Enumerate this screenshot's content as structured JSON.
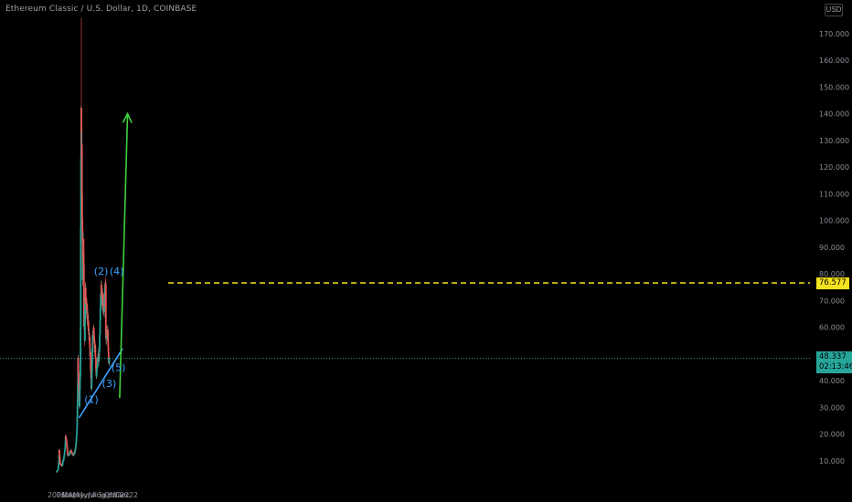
{
  "header": {
    "symbol_title": "Ethereum Classic / U.S. Dollar, 1D, COINBASE",
    "currency": "USD"
  },
  "price_badges": {
    "level": "76.577",
    "last_price": "48.337",
    "countdown": "02:13:46"
  },
  "colors": {
    "background": "#000000",
    "up": "#26a69a",
    "down": "#ef5350",
    "support_line": "#3ea1ff",
    "resistance_line": "#f3e21e",
    "projection_arrow": "#3ed13e",
    "wave_label": "#3ea1ff",
    "last_price_line": "#26a69a"
  },
  "chart_data": {
    "type": "candlestick",
    "title": "Ethereum Classic / U.S. Dollar, 1D, COINBASE",
    "x_axis": {
      "tick_labels": [
        "2021",
        "Feb",
        "Mar",
        "Apr",
        "May",
        "Jun",
        "Jul",
        "Aug",
        "Sep",
        "Oct",
        "Nov",
        "Dec",
        "2022"
      ]
    },
    "y_axis": {
      "side": "right",
      "ylim": [
        0,
        180
      ],
      "tick_labels": [
        "10.000",
        "20.000",
        "30.000",
        "40.000",
        "50.000",
        "60.000",
        "70.000",
        "80.000",
        "90.000",
        "100.000",
        "110.000",
        "120.000",
        "130.000",
        "140.000",
        "150.000",
        "160.000",
        "170.000"
      ],
      "tick_values": [
        10,
        20,
        30,
        40,
        50,
        60,
        70,
        80,
        90,
        100,
        110,
        120,
        130,
        140,
        150,
        160,
        170
      ]
    },
    "price_path": [
      [
        "2021-01-01",
        6
      ],
      [
        "2021-01-08",
        6.5
      ],
      [
        "2021-01-12",
        10
      ],
      [
        "2021-01-14",
        14
      ],
      [
        "2021-01-18",
        9
      ],
      [
        "2021-01-28",
        8
      ],
      [
        "2021-02-06",
        11
      ],
      [
        "2021-02-12",
        14
      ],
      [
        "2021-02-15",
        19
      ],
      [
        "2021-02-20",
        17
      ],
      [
        "2021-02-26",
        12
      ],
      [
        "2021-03-06",
        12.5
      ],
      [
        "2021-03-15",
        14
      ],
      [
        "2021-03-25",
        12
      ],
      [
        "2021-04-03",
        13
      ],
      [
        "2021-04-10",
        17
      ],
      [
        "2021-04-14",
        22
      ],
      [
        "2021-04-16",
        30
      ],
      [
        "2021-04-18",
        38
      ],
      [
        "2021-04-19",
        47
      ],
      [
        "2021-04-23",
        37
      ],
      [
        "2021-04-26",
        30
      ],
      [
        "2021-05-01",
        45
      ],
      [
        "2021-05-02",
        60
      ],
      [
        "2021-05-03",
        95
      ],
      [
        "2021-05-04",
        120
      ],
      [
        "2021-05-05",
        140
      ],
      [
        "2021-05-06",
        130
      ],
      [
        "2021-05-08",
        125
      ],
      [
        "2021-05-10",
        100
      ],
      [
        "2021-05-12",
        95
      ],
      [
        "2021-05-13",
        78
      ],
      [
        "2021-05-15",
        85
      ],
      [
        "2021-05-16",
        90
      ],
      [
        "2021-05-18",
        82
      ],
      [
        "2021-05-19",
        60
      ],
      [
        "2021-05-20",
        68
      ],
      [
        "2021-05-23",
        57
      ],
      [
        "2021-05-26",
        76
      ],
      [
        "2021-05-29",
        70
      ],
      [
        "2021-06-01",
        68
      ],
      [
        "2021-06-08",
        62
      ],
      [
        "2021-06-15",
        56
      ],
      [
        "2021-06-21",
        48
      ],
      [
        "2021-06-23",
        43
      ],
      [
        "2021-06-26",
        38
      ],
      [
        "2021-06-29",
        45
      ],
      [
        "2021-07-02",
        55
      ],
      [
        "2021-07-07",
        58
      ],
      [
        "2021-07-11",
        54
      ],
      [
        "2021-07-16",
        50
      ],
      [
        "2021-07-21",
        42
      ],
      [
        "2021-07-24",
        45
      ],
      [
        "2021-07-28",
        48
      ],
      [
        "2021-08-03",
        49
      ],
      [
        "2021-08-07",
        56
      ],
      [
        "2021-08-10",
        65
      ],
      [
        "2021-08-14",
        74
      ],
      [
        "2021-08-17",
        72
      ],
      [
        "2021-08-23",
        70
      ],
      [
        "2021-08-28",
        64
      ],
      [
        "2021-09-03",
        74
      ],
      [
        "2021-09-06",
        75
      ],
      [
        "2021-09-07",
        58
      ],
      [
        "2021-09-11",
        57
      ],
      [
        "2021-09-17",
        58
      ],
      [
        "2021-09-20",
        52
      ],
      [
        "2021-09-22",
        46
      ],
      [
        "2021-09-24",
        48.337
      ]
    ],
    "key_highs": [
      [
        "2021-05-06",
        176
      ],
      [
        "2021-08-14",
        77
      ],
      [
        "2021-09-06",
        77
      ]
    ],
    "annotations": {
      "wave_labels": [
        "(1)",
        "(2)",
        "(3)",
        "(4)",
        "(5)"
      ],
      "wave_points": [
        [
          "2021-06-26",
          33
        ],
        [
          "2021-08-14",
          81
        ],
        [
          "2021-09-24",
          39
        ],
        [
          "2021-11-01",
          81
        ],
        [
          "2021-11-10",
          45
        ]
      ],
      "support_trendline": [
        [
          "2021-04-24",
          26
        ],
        [
          "2021-12-01",
          52
        ]
      ],
      "resistance_level": 76.577,
      "projection_arrow": [
        [
          "2021-11-16",
          33.5
        ],
        [
          "2021-12-26",
          140
        ]
      ],
      "last_price": 48.337
    }
  }
}
